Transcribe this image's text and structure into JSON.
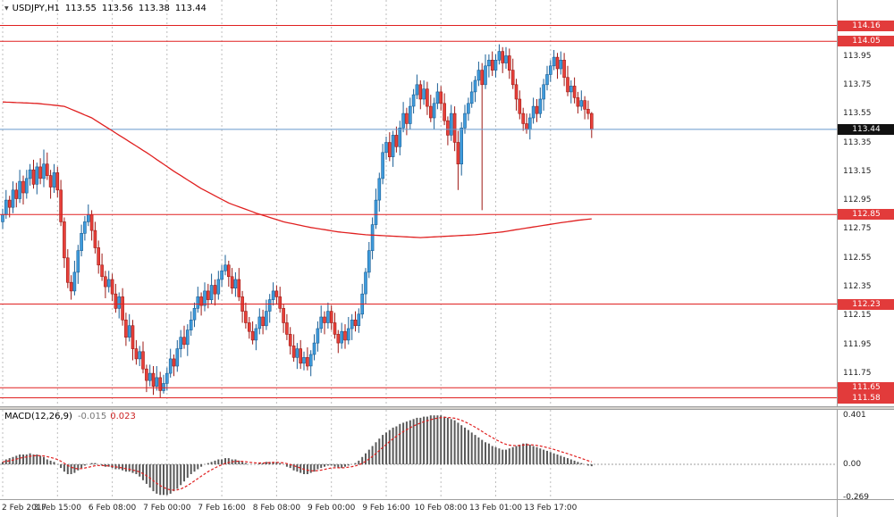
{
  "header": {
    "dropdown_icon": "▼",
    "symbol": "USDJPY,H1",
    "open": "113.55",
    "high": "113.56",
    "low": "113.38",
    "close": "113.44"
  },
  "indicator": {
    "label": "MACD(12,26,9)",
    "value": "-0.015",
    "signal_value": "0.023"
  },
  "colors": {
    "bull": "#3f9bdc",
    "bull_border": "#1a5f96",
    "bear": "#e8403a",
    "bear_border": "#9e1a15",
    "ma_line": "#e02020",
    "level_line": "#e02020",
    "current_line": "#6699cc",
    "macd_bar": "#5a5a5a",
    "macd_signal": "#e02020",
    "grid": "#bdbdbd",
    "zero_line": "#9e9e9e",
    "badge_level_bg": "#e23b3b",
    "badge_current_bg": "#111111",
    "axis_text": "#222222"
  },
  "levels": [
    114.16,
    114.05,
    112.85,
    112.23,
    111.65,
    111.58
  ],
  "current_price": 113.44,
  "price_axis": {
    "ticks": [
      "113.95",
      "113.75",
      "113.55",
      "113.35",
      "113.15",
      "112.95",
      "112.75",
      "112.55",
      "112.35",
      "112.15",
      "111.95",
      "111.75"
    ]
  },
  "time_axis": [
    "2 Feb 2017",
    "3 Feb 15:00",
    "6 Feb 08:00",
    "7 Feb 00:00",
    "7 Feb 16:00",
    "8 Feb 08:00",
    "9 Feb 00:00",
    "9 Feb 16:00",
    "10 Feb 08:00",
    "13 Feb 01:00",
    "13 Feb 17:00"
  ],
  "chart_data": {
    "type": "candlestick",
    "symbol": "USDJPY",
    "timeframe": "H1",
    "title": "USDJPY,H1",
    "price_range": [
      111.54,
      114.25
    ],
    "first_open": 112.8,
    "closes": [
      112.85,
      112.95,
      112.9,
      113.02,
      112.96,
      113.08,
      113.0,
      113.1,
      113.16,
      113.06,
      113.18,
      113.1,
      113.2,
      113.12,
      113.04,
      113.14,
      113.02,
      112.8,
      112.55,
      112.38,
      112.32,
      112.45,
      112.6,
      112.72,
      112.8,
      112.85,
      112.74,
      112.62,
      112.5,
      112.42,
      112.35,
      112.4,
      112.3,
      112.2,
      112.28,
      112.12,
      112.0,
      112.08,
      111.92,
      111.85,
      111.9,
      111.78,
      111.7,
      111.75,
      111.66,
      111.72,
      111.63,
      111.68,
      111.75,
      111.85,
      111.8,
      111.92,
      112.0,
      111.95,
      112.05,
      112.12,
      112.2,
      112.28,
      112.22,
      112.32,
      112.26,
      112.36,
      112.3,
      112.4,
      112.46,
      112.5,
      112.42,
      112.34,
      112.4,
      112.28,
      112.18,
      112.1,
      112.04,
      111.98,
      112.06,
      112.14,
      112.08,
      112.18,
      112.26,
      112.32,
      112.28,
      112.2,
      112.1,
      112.02,
      111.94,
      111.86,
      111.92,
      111.82,
      111.86,
      111.8,
      111.88,
      111.96,
      112.06,
      112.14,
      112.1,
      112.18,
      112.1,
      112.02,
      111.96,
      112.04,
      111.98,
      112.06,
      112.12,
      112.08,
      112.16,
      112.3,
      112.45,
      112.6,
      112.78,
      112.95,
      113.1,
      113.28,
      113.35,
      113.25,
      113.4,
      113.32,
      113.45,
      113.55,
      113.48,
      113.6,
      113.68,
      113.75,
      113.65,
      113.72,
      113.6,
      113.52,
      113.62,
      113.7,
      113.62,
      113.5,
      113.4,
      113.55,
      113.35,
      113.2,
      113.45,
      113.55,
      113.62,
      113.7,
      113.78,
      113.85,
      113.75,
      113.88,
      113.92,
      113.85,
      113.92,
      113.98,
      113.9,
      113.95,
      113.85,
      113.75,
      113.65,
      113.55,
      113.48,
      113.44,
      113.52,
      113.6,
      113.55,
      113.65,
      113.75,
      113.82,
      113.88,
      113.94,
      113.86,
      113.92,
      113.8,
      113.7,
      113.74,
      113.66,
      113.6,
      113.64,
      113.58,
      113.55,
      113.44
    ],
    "wick_high_pattern": [
      0.04,
      0.07,
      0.03,
      0.06,
      0.05,
      0.08,
      0.04,
      0.06
    ],
    "wick_low_pattern": [
      0.05,
      0.03,
      0.07,
      0.04,
      0.06,
      0.03,
      0.08,
      0.04
    ],
    "wick_overrides": {
      "12": {
        "high": 113.3
      },
      "42": {
        "low": 111.62
      },
      "44": {
        "low": 111.6
      },
      "46": {
        "low": 111.58
      },
      "47": {
        "low": 111.61
      },
      "133": {
        "low": 113.02
      },
      "140": {
        "low": 112.88
      },
      "145": {
        "high": 114.03
      },
      "161": {
        "high": 113.99
      },
      "172": {
        "high": 113.56,
        "low": 113.38
      }
    },
    "ma_waypoints": [
      [
        0,
        113.63
      ],
      [
        10,
        113.62
      ],
      [
        18,
        113.6
      ],
      [
        26,
        113.52
      ],
      [
        34,
        113.4
      ],
      [
        42,
        113.28
      ],
      [
        50,
        113.15
      ],
      [
        58,
        113.03
      ],
      [
        66,
        112.93
      ],
      [
        74,
        112.86
      ],
      [
        82,
        112.8
      ],
      [
        90,
        112.76
      ],
      [
        98,
        112.73
      ],
      [
        106,
        112.71
      ],
      [
        114,
        112.7
      ],
      [
        122,
        112.69
      ],
      [
        130,
        112.7
      ],
      [
        138,
        112.71
      ],
      [
        146,
        112.73
      ],
      [
        154,
        112.76
      ],
      [
        162,
        112.79
      ],
      [
        168,
        112.81
      ],
      [
        172,
        112.82
      ]
    ],
    "macd": {
      "signal_period": 9,
      "range": [
        -0.269,
        0.401
      ],
      "axis_labels": [
        "0.401",
        "0.00",
        "-0.269"
      ],
      "values": [
        0.02,
        0.04,
        0.05,
        0.06,
        0.07,
        0.08,
        0.08,
        0.08,
        0.09,
        0.08,
        0.08,
        0.07,
        0.06,
        0.04,
        0.03,
        0.02,
        0.0,
        -0.03,
        -0.06,
        -0.08,
        -0.08,
        -0.07,
        -0.05,
        -0.03,
        -0.01,
        0.0,
        0.01,
        0.01,
        0.0,
        -0.01,
        -0.02,
        -0.02,
        -0.03,
        -0.04,
        -0.04,
        -0.05,
        -0.06,
        -0.06,
        -0.07,
        -0.08,
        -0.1,
        -0.13,
        -0.16,
        -0.19,
        -0.22,
        -0.24,
        -0.25,
        -0.25,
        -0.25,
        -0.24,
        -0.22,
        -0.2,
        -0.17,
        -0.14,
        -0.11,
        -0.08,
        -0.06,
        -0.04,
        -0.02,
        0.0,
        0.01,
        0.02,
        0.03,
        0.04,
        0.04,
        0.05,
        0.05,
        0.04,
        0.04,
        0.03,
        0.02,
        0.01,
        0.0,
        0.0,
        0.0,
        0.01,
        0.01,
        0.02,
        0.02,
        0.02,
        0.02,
        0.01,
        0.0,
        -0.02,
        -0.03,
        -0.05,
        -0.06,
        -0.07,
        -0.08,
        -0.08,
        -0.07,
        -0.06,
        -0.04,
        -0.03,
        -0.02,
        -0.01,
        -0.01,
        -0.02,
        -0.03,
        -0.03,
        -0.02,
        -0.01,
        0.0,
        0.01,
        0.03,
        0.06,
        0.09,
        0.12,
        0.15,
        0.18,
        0.21,
        0.24,
        0.26,
        0.28,
        0.3,
        0.31,
        0.33,
        0.34,
        0.35,
        0.36,
        0.37,
        0.38,
        0.38,
        0.39,
        0.39,
        0.4,
        0.4,
        0.4,
        0.4,
        0.39,
        0.38,
        0.37,
        0.36,
        0.34,
        0.32,
        0.3,
        0.28,
        0.26,
        0.24,
        0.22,
        0.2,
        0.18,
        0.17,
        0.15,
        0.14,
        0.13,
        0.12,
        0.12,
        0.13,
        0.14,
        0.15,
        0.16,
        0.17,
        0.17,
        0.16,
        0.15,
        0.14,
        0.13,
        0.12,
        0.11,
        0.1,
        0.09,
        0.08,
        0.07,
        0.06,
        0.05,
        0.04,
        0.03,
        0.02,
        0.01,
        0.0,
        -0.01,
        -0.015
      ]
    }
  }
}
